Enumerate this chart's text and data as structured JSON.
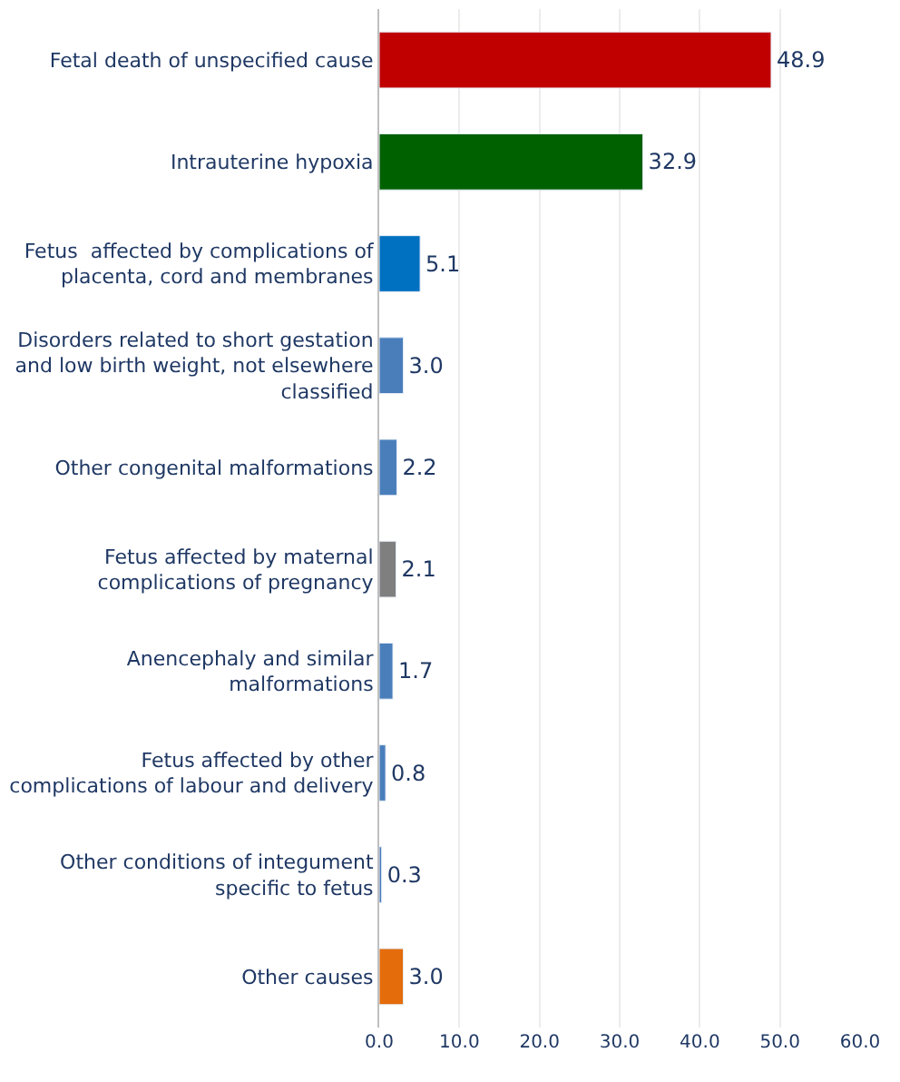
{
  "chart_data": {
    "type": "bar",
    "orientation": "horizontal",
    "categories": [
      "Fetal death of unspecified cause",
      "Intrauterine hypoxia",
      "Fetus  affected by complications of\nplacenta, cord and membranes",
      "Disorders related to short gestation\nand low birth weight, not elsewhere\nclassified",
      "Other congenital malformations",
      "Fetus affected by maternal\ncomplications of pregnancy",
      "Anencephaly and similar\nmalformations",
      "Fetus affected by other\ncomplications of labour and delivery",
      "Other conditions of integument\nspecific to fetus",
      "Other causes"
    ],
    "values": [
      48.9,
      32.9,
      5.1,
      3.0,
      2.2,
      2.1,
      1.7,
      0.8,
      0.3,
      3.0
    ],
    "colors": [
      "#c00000",
      "#006100",
      "#0070c0",
      "#4a7ebb",
      "#4a7ebb",
      "#7f7f7f",
      "#4a7ebb",
      "#4a7ebb",
      "#4a7ebb",
      "#e46c0a"
    ],
    "value_labels": [
      "48.9",
      "32.9",
      "5.1",
      "3.0",
      "2.2",
      "2.1",
      "1.7",
      "0.8",
      "0.3",
      "3.0"
    ],
    "xlim": [
      0,
      60
    ],
    "xticks": [
      {
        "value": 0,
        "label": "0.0"
      },
      {
        "value": 10,
        "label": "10.0"
      },
      {
        "value": 20,
        "label": "20.0"
      },
      {
        "value": 30,
        "label": "30.0"
      },
      {
        "value": 40,
        "label": "40.0"
      },
      {
        "value": 50,
        "label": "50.0"
      },
      {
        "value": 60,
        "label": "60.0"
      }
    ],
    "grid": "x",
    "legend": false
  }
}
